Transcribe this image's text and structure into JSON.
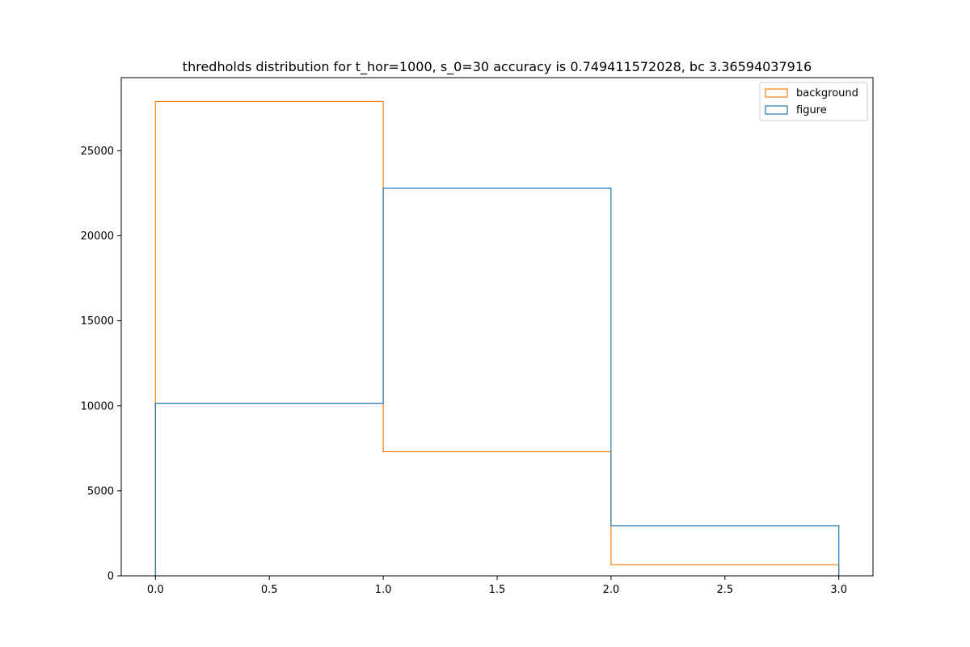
{
  "chart_data": {
    "type": "bar",
    "subtype": "step-histogram",
    "title": "thredholds distribution for t_hor=1000, s_0=30 accuracy is 0.749411572028, bc 3.36594037916",
    "xlabel": "",
    "ylabel": "",
    "bin_edges": [
      0,
      1,
      2,
      3
    ],
    "series": [
      {
        "name": "background",
        "color": "#ff7f0e",
        "values": [
          27900,
          7300,
          650
        ]
      },
      {
        "name": "figure",
        "color": "#1f77b4",
        "values": [
          10150,
          22800,
          2950
        ]
      }
    ],
    "xlim": [
      -0.15,
      3.15
    ],
    "ylim": [
      0,
      29300
    ],
    "xticks": [
      0.0,
      0.5,
      1.0,
      1.5,
      2.0,
      2.5,
      3.0
    ],
    "xtick_labels": [
      "0.0",
      "0.5",
      "1.0",
      "1.5",
      "2.0",
      "2.5",
      "3.0"
    ],
    "yticks": [
      0,
      5000,
      10000,
      15000,
      20000,
      25000
    ],
    "ytick_labels": [
      "0",
      "5000",
      "10000",
      "15000",
      "20000",
      "25000"
    ],
    "grid": false,
    "legend_position": "top-right",
    "legend": [
      {
        "label": "background",
        "color": "#ff7f0e"
      },
      {
        "label": "figure",
        "color": "#1f77b4"
      }
    ]
  }
}
